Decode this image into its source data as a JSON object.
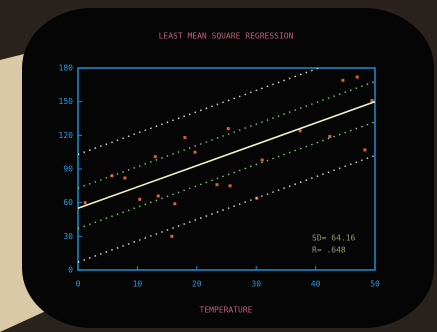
{
  "chart_data": {
    "type": "scatter",
    "title": "LEAST MEAN SQUARE REGRESSION",
    "xlabel": "TEMPERATURE",
    "annotations": [
      "SD= 64.16",
      "R= .648"
    ],
    "xlim": [
      0,
      50
    ],
    "xticks": [
      0,
      10,
      20,
      30,
      40,
      50
    ],
    "ylim": [
      0,
      180
    ],
    "yticks": [
      0,
      30,
      60,
      90,
      120,
      150,
      180
    ],
    "series": [
      {
        "style": "points",
        "color": "#d9603a",
        "x": [
          1.2,
          5.7,
          7.9,
          10.4,
          13,
          13.5,
          15.8,
          16.3,
          18,
          19.7,
          23.4,
          25.3,
          25.6,
          30.1,
          31,
          37.4,
          42.4,
          44.6,
          47,
          48.3,
          49.5
        ],
        "values": [
          60,
          84,
          82,
          63,
          101,
          66,
          30,
          59,
          118,
          105,
          76,
          126,
          75,
          64,
          98,
          124,
          119,
          169,
          172,
          107,
          151
        ]
      },
      {
        "style": "solid",
        "color": "#f2f0c8",
        "x": [
          0,
          50
        ],
        "values": [
          55,
          150
        ]
      },
      {
        "style": "dotted",
        "color": "#7fd07a",
        "x": [
          0,
          50
        ],
        "values": [
          73,
          168
        ]
      },
      {
        "style": "dotted",
        "color": "#7fd07a",
        "x": [
          0,
          50
        ],
        "values": [
          37,
          132
        ]
      },
      {
        "style": "dotted",
        "color": "#e8ecd0",
        "x": [
          0,
          45
        ],
        "values": [
          103,
          188.5
        ]
      },
      {
        "style": "dotted",
        "color": "#e8ecd0",
        "x": [
          0,
          50
        ],
        "values": [
          7,
          102
        ]
      }
    ]
  }
}
